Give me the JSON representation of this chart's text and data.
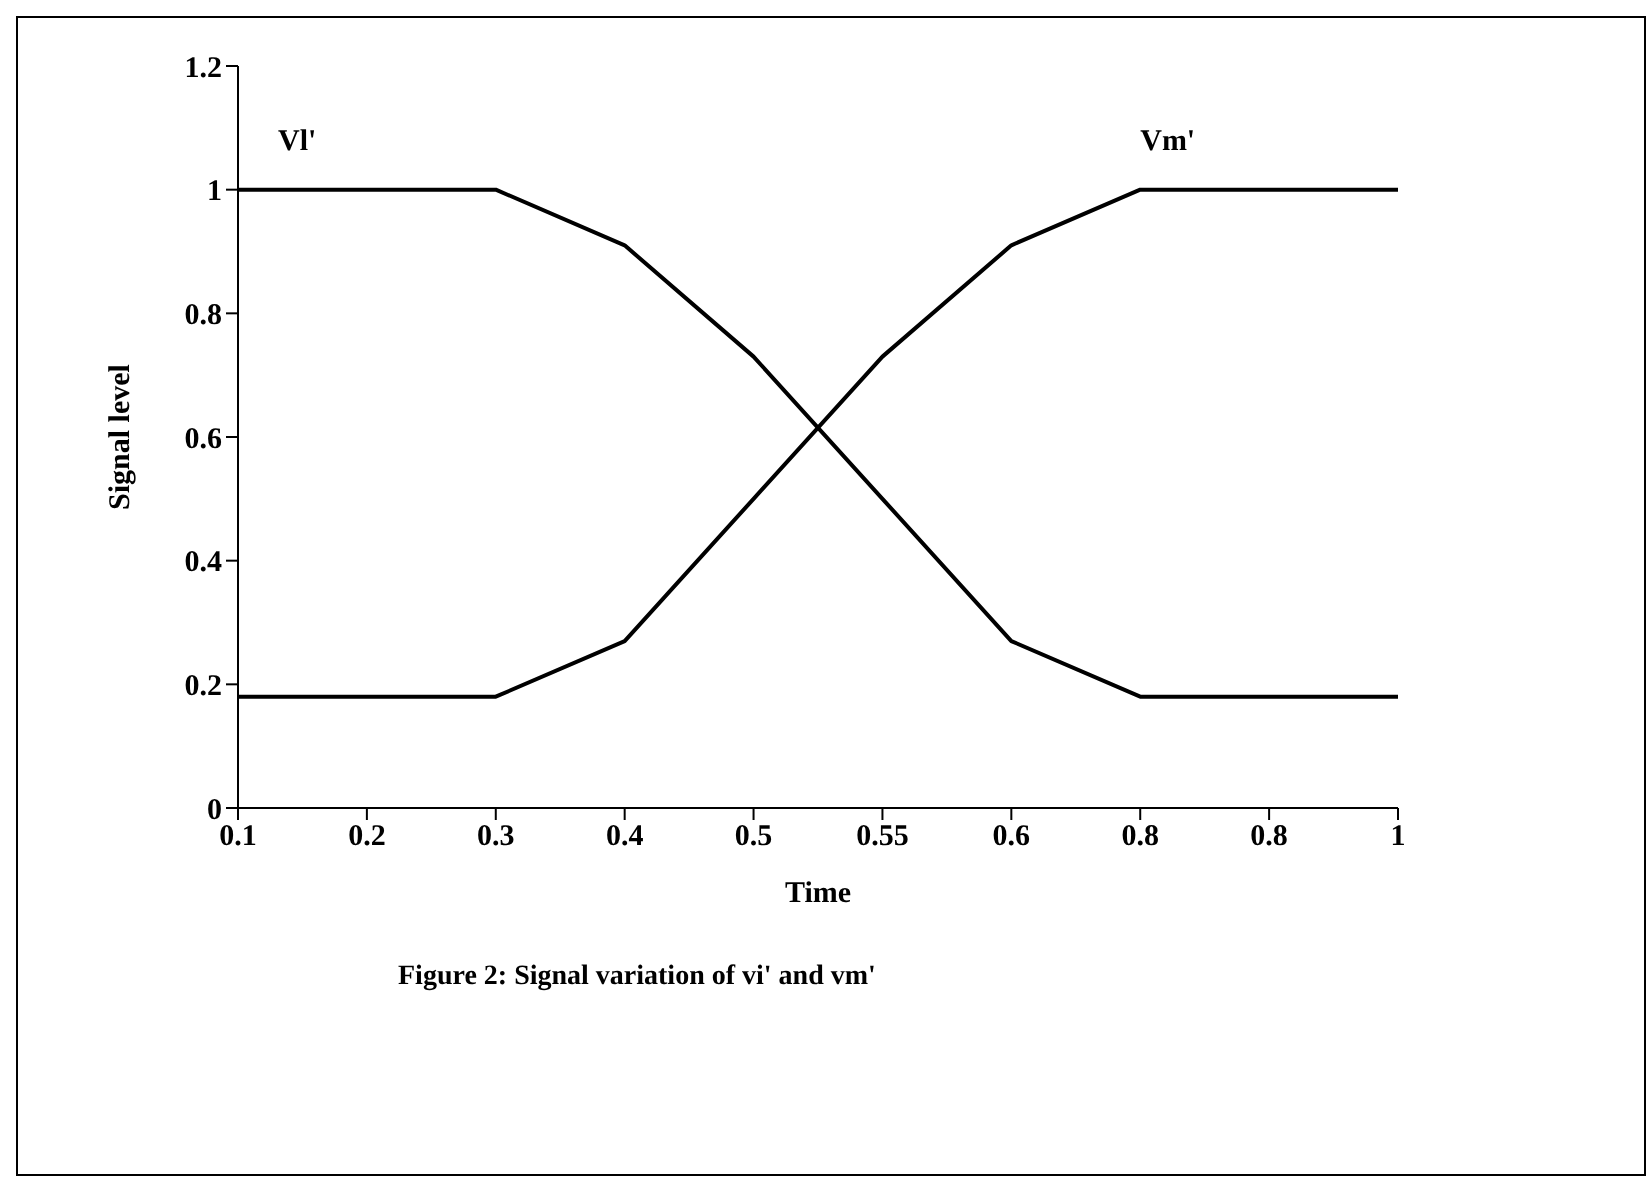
{
  "chart_data": {
    "type": "line",
    "xlabel": "Time",
    "ylabel": "Signal level",
    "categories": [
      "0.1",
      "0.2",
      "0.3",
      "0.4",
      "0.5",
      "0.55",
      "0.6",
      "0.8",
      "0.8",
      "1"
    ],
    "series": [
      {
        "name": "Vl'",
        "color": "#000000",
        "values": [
          1,
          1,
          1,
          0.91,
          0.73,
          0.5,
          0.27,
          0.18,
          0.18,
          0.18
        ]
      },
      {
        "name": "Vm'",
        "color": "#000000",
        "values": [
          0.18,
          0.18,
          0.18,
          0.27,
          0.5,
          0.73,
          0.91,
          1,
          1,
          1
        ]
      }
    ],
    "ylim": [
      0,
      1.2
    ],
    "yticks": [
      0,
      0.2,
      0.4,
      0.6,
      0.8,
      1,
      1.2
    ],
    "grid": false,
    "legend": false,
    "marker": "none",
    "line_style": "solid",
    "annotations": [
      "Figure 2: Signal variation of vi' and vm'"
    ]
  }
}
